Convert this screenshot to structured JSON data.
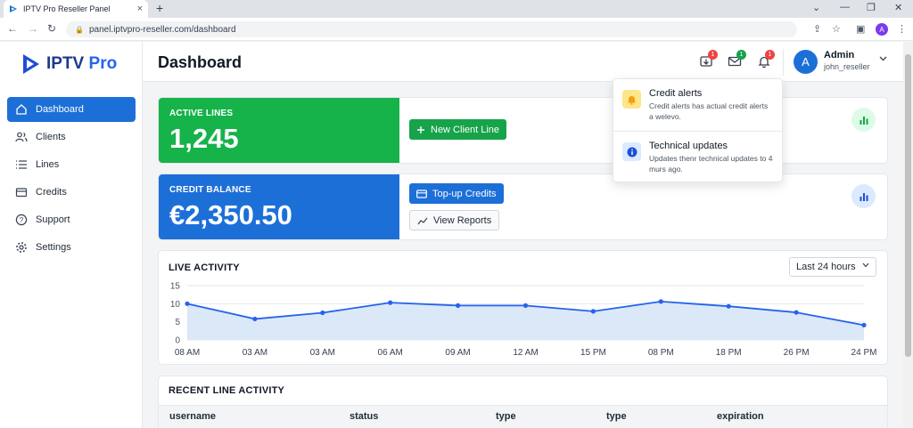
{
  "browser": {
    "tab_title": "IPTV Pro Reseller Panel",
    "tab_close": "×",
    "new_tab": "+",
    "url": "panel.iptvpro-reseller.com/dashboard",
    "profile_initial": "A",
    "controls": {
      "minimize": "⌄",
      "min2": "—",
      "restore": "❐",
      "close": "✕"
    }
  },
  "sidebar": {
    "logo_main": "IPTV",
    "logo_accent": "Pro",
    "items": [
      {
        "label": "Dashboard",
        "icon": "home-icon",
        "active": true
      },
      {
        "label": "Clients",
        "icon": "users-icon",
        "active": false
      },
      {
        "label": "Lines",
        "icon": "list-icon",
        "active": false
      },
      {
        "label": "Credits",
        "icon": "wallet-icon",
        "active": false
      },
      {
        "label": "Support",
        "icon": "help-icon",
        "active": false
      },
      {
        "label": "Settings",
        "icon": "gear-icon",
        "active": false
      }
    ]
  },
  "header": {
    "title": "Dashboard",
    "icons": [
      {
        "name": "download-icon",
        "badge": "1",
        "badge_color": "#ef4444"
      },
      {
        "name": "mail-icon",
        "badge": "1",
        "badge_color": "#16a34a"
      },
      {
        "name": "bell-icon",
        "badge": "1",
        "badge_color": "#ef4444"
      }
    ],
    "user": {
      "initial": "A",
      "name": "Admin",
      "handle": "john_reseller"
    }
  },
  "stats": {
    "active_lines": {
      "label": "ACTIVE LINES",
      "value": "1,245",
      "color": "#16b24a"
    },
    "credit_balance": {
      "label": "CREDIT BALANCE",
      "value": "€2,350.50",
      "color": "#1d6fd8"
    },
    "new_client_line": "New Client Line",
    "topup_credits": "Top-up Credits",
    "view_reports": "View Reports"
  },
  "live_activity": {
    "title": "LIVE ACTIVITY",
    "range": "Last 24 hours"
  },
  "chart_data": {
    "type": "area",
    "title": "LIVE ACTIVITY",
    "x": [
      "08 AM",
      "03 AM",
      "03 AM",
      "06 AM",
      "09 AM",
      "12 AM",
      "15 PM",
      "08 PM",
      "18 PM",
      "26 PM",
      "24 PM"
    ],
    "series": [
      {
        "values": [
          10,
          5.8,
          7.5,
          10.3,
          9.5,
          9.5,
          7.9,
          10.6,
          9.3,
          7.6,
          4.1
        ]
      }
    ],
    "yticks": [
      0,
      5,
      10,
      15
    ],
    "ylim": [
      0,
      15
    ],
    "grid": true,
    "color": "#2563eb",
    "fill": "#dbe8f7"
  },
  "recent": {
    "title": "RECENT LINE ACTIVITY",
    "columns": [
      "username",
      "status",
      "type",
      "type",
      "expiration"
    ]
  },
  "notifications": [
    {
      "title": "Credit alerts",
      "text": "Credit alerts has actual credit alerts a welevo.",
      "icon": "bell-icon",
      "icon_bg": "#fde68a"
    },
    {
      "title": "Technical updates",
      "text": "Updates thenr technical updates to 4 murs ago.",
      "icon": "info-icon",
      "icon_bg": "#dbeafe"
    }
  ]
}
